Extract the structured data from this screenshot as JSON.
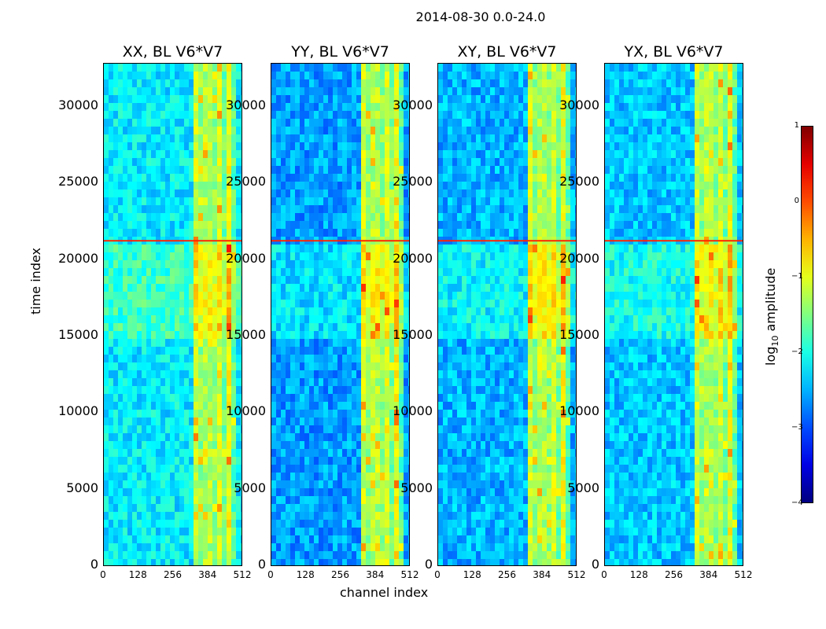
{
  "chart_data": {
    "type": "heatmap",
    "suptitle": "2014-08-30 0.0-24.0",
    "xlabel": "channel index",
    "ylabel": "time index",
    "xlim": [
      0,
      512
    ],
    "ylim": [
      0,
      32768
    ],
    "x_ticks": [
      "0",
      "128",
      "256",
      "384",
      "512"
    ],
    "y_ticks": [
      "0",
      "5000",
      "10000",
      "15000",
      "20000",
      "25000",
      "30000"
    ],
    "y_tick_values": [
      0,
      5000,
      10000,
      15000,
      20000,
      25000,
      30000
    ],
    "panels": [
      {
        "title": "XX, BL V6*V7",
        "rfi_band": [
          324,
          480
        ],
        "background_level": -2.2
      },
      {
        "title": "YY, BL V6*V7",
        "rfi_band": [
          324,
          480
        ],
        "background_level": -2.6
      },
      {
        "title": "XY, BL V6*V7",
        "rfi_band": [
          324,
          480
        ],
        "background_level": -2.5
      },
      {
        "title": "YX, BL V6*V7",
        "rfi_band": [
          324,
          480
        ],
        "background_level": -2.4
      }
    ],
    "features": {
      "bright_block_time_range": [
        15000,
        21200
      ],
      "transition_line_time": 21200
    },
    "colorbar": {
      "label_prefix": "log",
      "label_subscript": "10",
      "label_suffix": " amplitude",
      "range": [
        -4,
        1
      ],
      "ticks": [
        "1",
        "0",
        "−1",
        "−2",
        "−3",
        "−4"
      ],
      "colormap": "jet"
    }
  }
}
